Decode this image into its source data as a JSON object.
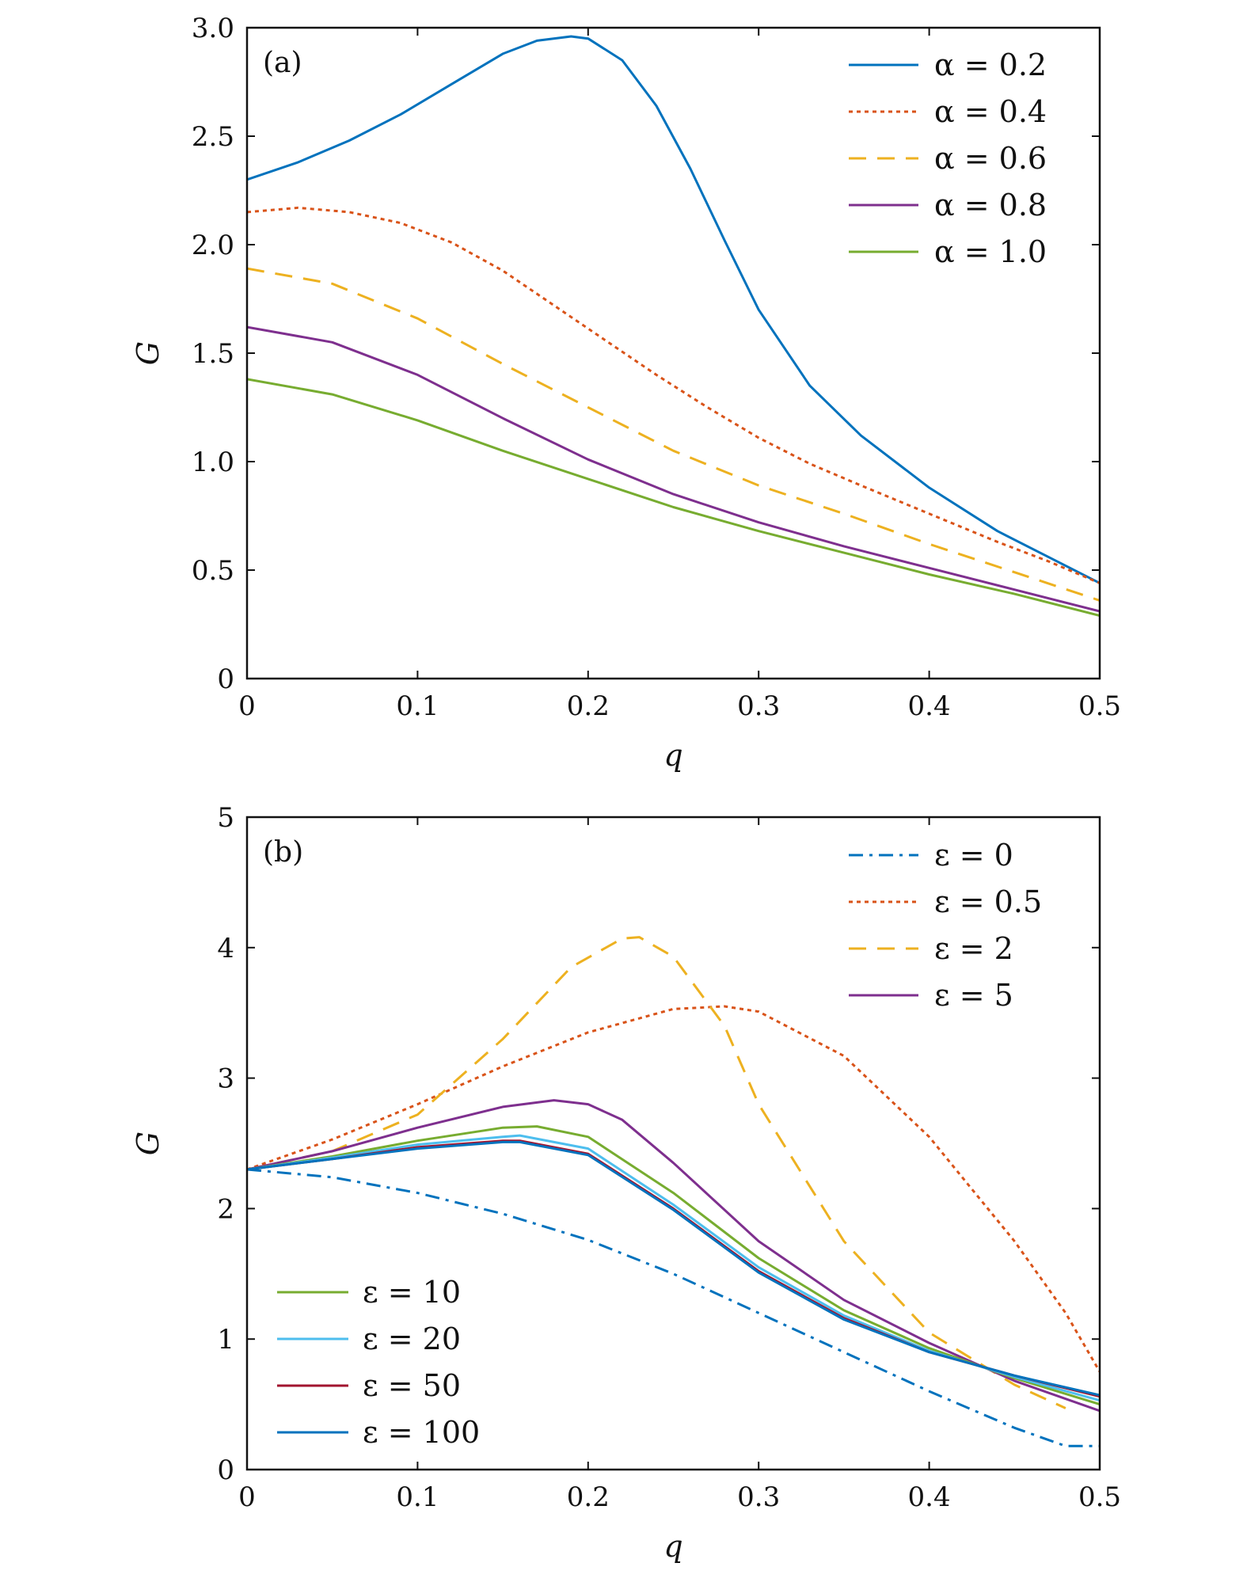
{
  "chart_data": [
    {
      "type": "line",
      "panel_label": "(a)",
      "xlabel": "q",
      "ylabel": "G",
      "xlim": [
        0,
        0.5
      ],
      "ylim": [
        0,
        3.0
      ],
      "xticks": [
        "0",
        "0.1",
        "0.2",
        "0.3",
        "0.4",
        "0.5"
      ],
      "yticks": [
        "0",
        "0.5",
        "1.0",
        "1.5",
        "2.0",
        "2.5",
        "3.0"
      ],
      "legend_position": "top-right",
      "series": [
        {
          "name": "α = 0.2",
          "color": "#0072BD",
          "dash": "solid",
          "x": [
            0,
            0.03,
            0.06,
            0.09,
            0.12,
            0.15,
            0.17,
            0.19,
            0.2,
            0.22,
            0.24,
            0.26,
            0.28,
            0.3,
            0.33,
            0.36,
            0.4,
            0.44,
            0.47,
            0.5
          ],
          "y": [
            2.3,
            2.38,
            2.48,
            2.6,
            2.74,
            2.88,
            2.94,
            2.96,
            2.95,
            2.85,
            2.64,
            2.35,
            2.02,
            1.7,
            1.35,
            1.12,
            0.88,
            0.68,
            0.56,
            0.44
          ]
        },
        {
          "name": "α = 0.4",
          "color": "#D95319",
          "dash": "dotted",
          "x": [
            0,
            0.03,
            0.06,
            0.09,
            0.12,
            0.15,
            0.18,
            0.21,
            0.24,
            0.27,
            0.3,
            0.33,
            0.36,
            0.4,
            0.44,
            0.47,
            0.5
          ],
          "y": [
            2.15,
            2.17,
            2.15,
            2.1,
            2.01,
            1.88,
            1.72,
            1.56,
            1.4,
            1.25,
            1.11,
            0.99,
            0.89,
            0.76,
            0.63,
            0.54,
            0.44
          ]
        },
        {
          "name": "α = 0.6",
          "color": "#EDB120",
          "dash": "dashed",
          "x": [
            0,
            0.05,
            0.1,
            0.15,
            0.2,
            0.25,
            0.3,
            0.35,
            0.4,
            0.45,
            0.5
          ],
          "y": [
            1.89,
            1.82,
            1.66,
            1.45,
            1.25,
            1.05,
            0.89,
            0.76,
            0.62,
            0.49,
            0.36
          ]
        },
        {
          "name": "α = 0.8",
          "color": "#7E2F8E",
          "dash": "solid",
          "x": [
            0,
            0.05,
            0.1,
            0.15,
            0.2,
            0.25,
            0.3,
            0.35,
            0.4,
            0.45,
            0.5
          ],
          "y": [
            1.62,
            1.55,
            1.4,
            1.2,
            1.01,
            0.85,
            0.72,
            0.61,
            0.51,
            0.41,
            0.31
          ]
        },
        {
          "name": "α = 1.0",
          "color": "#77AC30",
          "dash": "solid",
          "x": [
            0,
            0.05,
            0.1,
            0.15,
            0.2,
            0.25,
            0.3,
            0.35,
            0.4,
            0.45,
            0.5
          ],
          "y": [
            1.38,
            1.31,
            1.19,
            1.05,
            0.92,
            0.79,
            0.68,
            0.58,
            0.48,
            0.39,
            0.29
          ]
        }
      ]
    },
    {
      "type": "line",
      "panel_label": "(b)",
      "xlabel": "q",
      "ylabel": "G",
      "xlim": [
        0,
        0.5
      ],
      "ylim": [
        0,
        5
      ],
      "xticks": [
        "0",
        "0.1",
        "0.2",
        "0.3",
        "0.4",
        "0.5"
      ],
      "yticks": [
        "0",
        "1",
        "2",
        "3",
        "4",
        "5"
      ],
      "legend_position": "top-right / bottom-left",
      "series": [
        {
          "name": "ε = 0",
          "color": "#0072BD",
          "dash": "dashdot",
          "legend_group": "right",
          "x": [
            0,
            0.05,
            0.1,
            0.15,
            0.2,
            0.25,
            0.3,
            0.35,
            0.4,
            0.45,
            0.48,
            0.5
          ],
          "y": [
            2.3,
            2.24,
            2.12,
            1.96,
            1.76,
            1.5,
            1.2,
            0.9,
            0.6,
            0.32,
            0.18,
            0.18
          ]
        },
        {
          "name": "ε = 0.5",
          "color": "#D95319",
          "dash": "dotted",
          "legend_group": "right",
          "x": [
            0,
            0.05,
            0.1,
            0.15,
            0.2,
            0.25,
            0.28,
            0.3,
            0.35,
            0.4,
            0.45,
            0.48,
            0.5
          ],
          "y": [
            2.3,
            2.53,
            2.8,
            3.09,
            3.35,
            3.53,
            3.55,
            3.51,
            3.17,
            2.55,
            1.75,
            1.2,
            0.75
          ]
        },
        {
          "name": "ε = 2",
          "color": "#EDB120",
          "dash": "dashed",
          "legend_group": "right",
          "x": [
            0,
            0.05,
            0.1,
            0.15,
            0.19,
            0.22,
            0.23,
            0.25,
            0.28,
            0.3,
            0.35,
            0.4,
            0.45,
            0.48
          ],
          "y": [
            2.3,
            2.44,
            2.72,
            3.3,
            3.85,
            4.07,
            4.08,
            3.93,
            3.4,
            2.8,
            1.75,
            1.05,
            0.65,
            0.47
          ]
        },
        {
          "name": "ε = 5",
          "color": "#7E2F8E",
          "dash": "solid",
          "legend_group": "right",
          "x": [
            0,
            0.05,
            0.1,
            0.15,
            0.18,
            0.2,
            0.22,
            0.25,
            0.3,
            0.35,
            0.4,
            0.45,
            0.5
          ],
          "y": [
            2.3,
            2.44,
            2.62,
            2.78,
            2.83,
            2.8,
            2.68,
            2.35,
            1.75,
            1.3,
            0.97,
            0.68,
            0.45
          ]
        },
        {
          "name": "ε = 10",
          "color": "#77AC30",
          "dash": "solid",
          "legend_group": "left",
          "x": [
            0,
            0.05,
            0.1,
            0.15,
            0.17,
            0.2,
            0.25,
            0.3,
            0.35,
            0.4,
            0.45,
            0.5
          ],
          "y": [
            2.3,
            2.4,
            2.52,
            2.62,
            2.63,
            2.55,
            2.12,
            1.62,
            1.22,
            0.93,
            0.7,
            0.5
          ]
        },
        {
          "name": "ε = 20",
          "color": "#4DBEEE",
          "dash": "solid",
          "legend_group": "left",
          "x": [
            0,
            0.05,
            0.1,
            0.15,
            0.16,
            0.2,
            0.25,
            0.3,
            0.35,
            0.4,
            0.45,
            0.5
          ],
          "y": [
            2.3,
            2.39,
            2.49,
            2.55,
            2.56,
            2.46,
            2.03,
            1.55,
            1.18,
            0.91,
            0.71,
            0.53
          ]
        },
        {
          "name": "ε = 50",
          "color": "#A2142F",
          "dash": "solid",
          "legend_group": "left",
          "x": [
            0,
            0.05,
            0.1,
            0.15,
            0.16,
            0.2,
            0.25,
            0.3,
            0.35,
            0.4,
            0.45,
            0.5
          ],
          "y": [
            2.3,
            2.38,
            2.47,
            2.52,
            2.52,
            2.42,
            2.0,
            1.52,
            1.16,
            0.9,
            0.72,
            0.56
          ]
        },
        {
          "name": "ε = 100",
          "color": "#0072BD",
          "dash": "solid",
          "legend_group": "left",
          "x": [
            0,
            0.05,
            0.1,
            0.15,
            0.16,
            0.2,
            0.25,
            0.3,
            0.35,
            0.4,
            0.45,
            0.5
          ],
          "y": [
            2.3,
            2.38,
            2.46,
            2.51,
            2.51,
            2.41,
            1.99,
            1.51,
            1.15,
            0.9,
            0.72,
            0.57
          ]
        }
      ]
    }
  ]
}
